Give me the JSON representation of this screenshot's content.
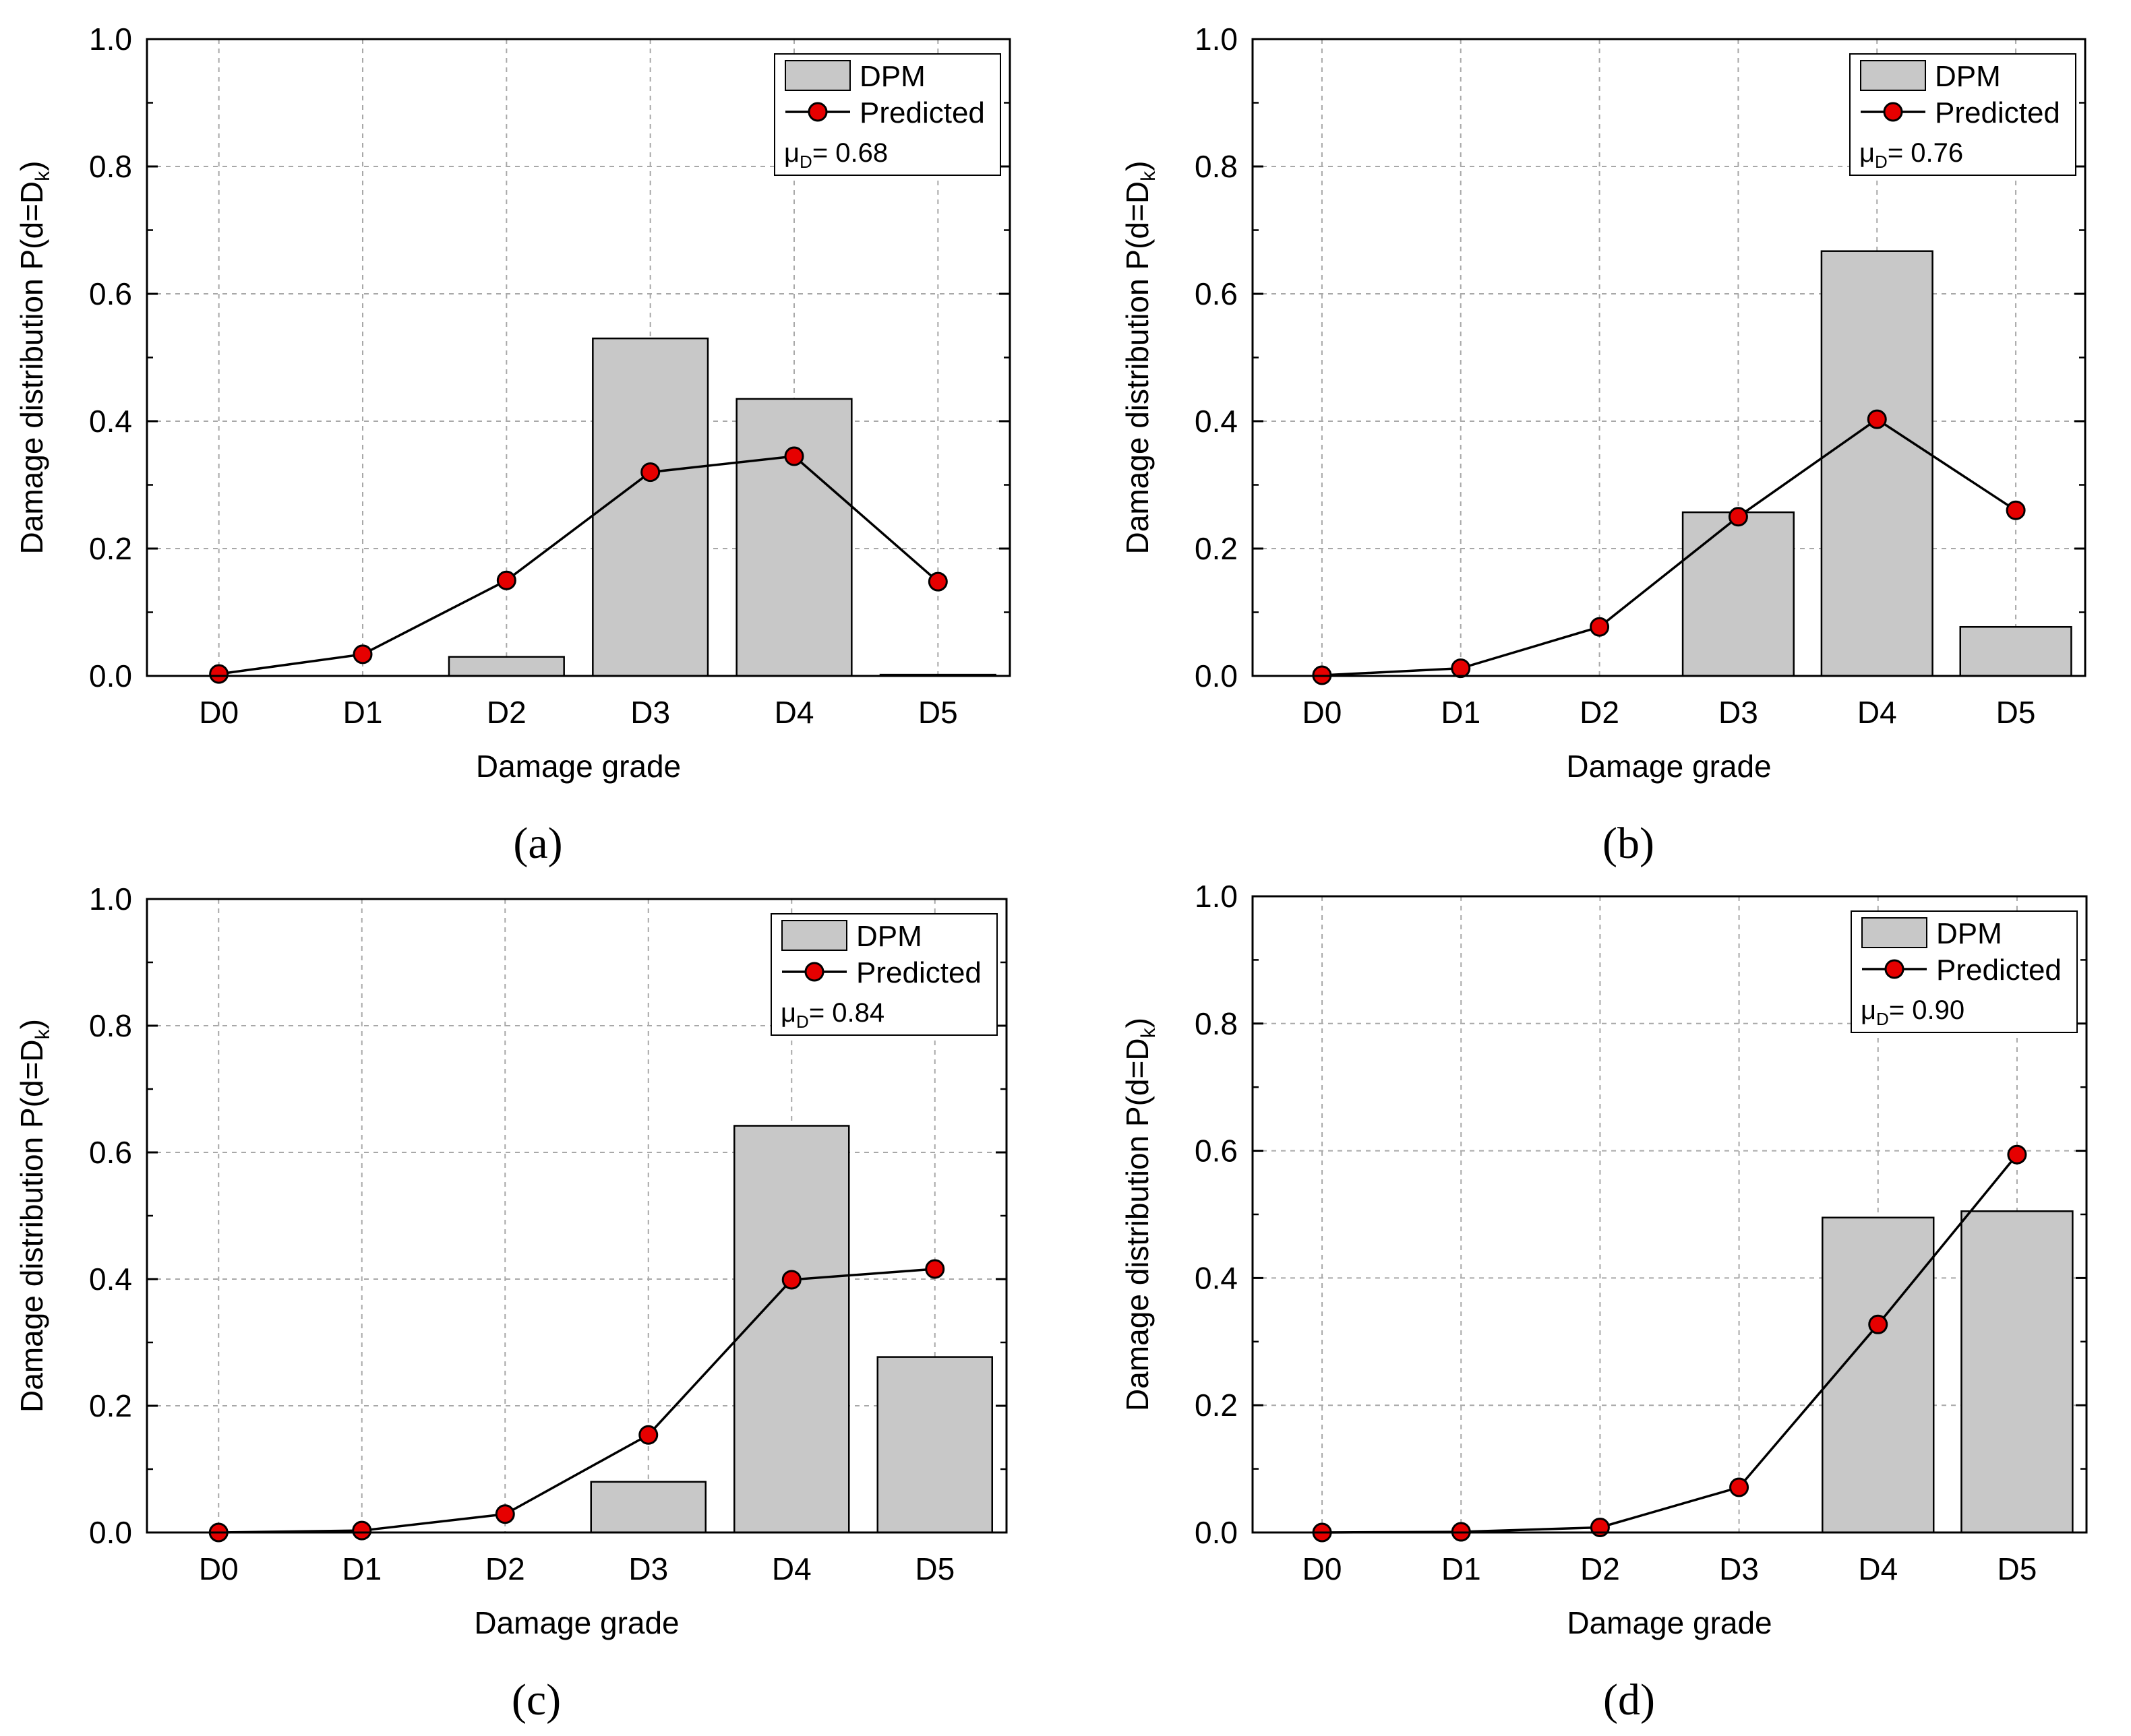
{
  "colors": {
    "bar_fill": "#c8c8c8",
    "bar_stroke": "#000000",
    "marker_fill": "#e60000",
    "line": "#000000",
    "grid": "#a8a8a8"
  },
  "chart_data": [
    {
      "type": "bar",
      "panel_label": "(a)",
      "categories": [
        "D0",
        "D1",
        "D2",
        "D3",
        "D4",
        "D5"
      ],
      "series": [
        {
          "name": "DPM",
          "type": "bar",
          "values": [
            0.0,
            0.0,
            0.03,
            0.53,
            0.435,
            0.002
          ]
        },
        {
          "name": "Predicted",
          "type": "line",
          "values": [
            0.003,
            0.034,
            0.15,
            0.32,
            0.345,
            0.148
          ]
        }
      ],
      "annotation": {
        "symbol": "μ",
        "sub": "D",
        "text": "= 0.68"
      },
      "xlabel": "Damage grade",
      "ylabel": {
        "main": "Damage distribution P(d=D",
        "sub": "k",
        "end": ")"
      },
      "ylim": [
        0,
        1.0
      ],
      "yticks": [
        "0.0",
        "0.2",
        "0.4",
        "0.6",
        "0.8",
        "1.0"
      ],
      "grid": true,
      "legend": "top-right"
    },
    {
      "type": "bar",
      "panel_label": "(b)",
      "categories": [
        "D0",
        "D1",
        "D2",
        "D3",
        "D4",
        "D5"
      ],
      "series": [
        {
          "name": "DPM",
          "type": "bar",
          "values": [
            0.0,
            0.0,
            0.0,
            0.257,
            0.667,
            0.077
          ]
        },
        {
          "name": "Predicted",
          "type": "line",
          "values": [
            0.001,
            0.012,
            0.077,
            0.25,
            0.403,
            0.26
          ]
        }
      ],
      "annotation": {
        "symbol": "μ",
        "sub": "D",
        "text": "= 0.76"
      },
      "xlabel": "Damage grade",
      "ylabel": {
        "main": "Damage distribution P(d=D",
        "sub": "k",
        "end": ")"
      },
      "ylim": [
        0,
        1.0
      ],
      "yticks": [
        "0.0",
        "0.2",
        "0.4",
        "0.6",
        "0.8",
        "1.0"
      ],
      "grid": true,
      "legend": "top-right"
    },
    {
      "type": "bar",
      "panel_label": "(c)",
      "categories": [
        "D0",
        "D1",
        "D2",
        "D3",
        "D4",
        "D5"
      ],
      "series": [
        {
          "name": "DPM",
          "type": "bar",
          "values": [
            0.0,
            0.0,
            0.0,
            0.08,
            0.642,
            0.277
          ]
        },
        {
          "name": "Predicted",
          "type": "line",
          "values": [
            0.0,
            0.003,
            0.029,
            0.154,
            0.399,
            0.416
          ]
        }
      ],
      "annotation": {
        "symbol": "μ",
        "sub": "D",
        "text": "= 0.84"
      },
      "xlabel": "Damage grade",
      "ylabel": {
        "main": "Damage distribution P(d=D",
        "sub": "k",
        "end": ")"
      },
      "ylim": [
        0,
        1.0
      ],
      "yticks": [
        "0.0",
        "0.2",
        "0.4",
        "0.6",
        "0.8",
        "1.0"
      ],
      "grid": true,
      "legend": "top-right"
    },
    {
      "type": "bar",
      "panel_label": "(d)",
      "categories": [
        "D0",
        "D1",
        "D2",
        "D3",
        "D4",
        "D5"
      ],
      "series": [
        {
          "name": "DPM",
          "type": "bar",
          "values": [
            0.0,
            0.0,
            0.0,
            0.0,
            0.495,
            0.505
          ]
        },
        {
          "name": "Predicted",
          "type": "line",
          "values": [
            0.0,
            0.001,
            0.008,
            0.071,
            0.327,
            0.594
          ]
        }
      ],
      "annotation": {
        "symbol": "μ",
        "sub": "D",
        "text": "= 0.90"
      },
      "xlabel": "Damage grade",
      "ylabel": {
        "main": "Damage distribution P(d=D",
        "sub": "k",
        "end": ")"
      },
      "ylim": [
        0,
        1.0
      ],
      "yticks": [
        "0.0",
        "0.2",
        "0.4",
        "0.6",
        "0.8",
        "1.0"
      ],
      "grid": true,
      "legend": "top-right"
    }
  ]
}
